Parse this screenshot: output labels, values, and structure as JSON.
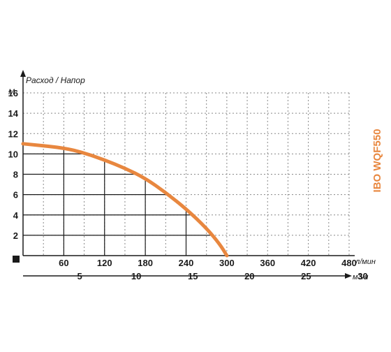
{
  "chart_data": {
    "type": "line",
    "title": "Расход / Напор",
    "model_label": "IBO WQF550",
    "y_unit": "М",
    "x_unit": "л/мин",
    "x2_unit": "м3/ч",
    "xlim": [
      0,
      480
    ],
    "ylim": [
      0,
      16
    ],
    "x_ticks": [
      "60",
      "120",
      "180",
      "240",
      "300",
      "360",
      "420",
      "480"
    ],
    "y_ticks": [
      "2",
      "4",
      "6",
      "8",
      "10",
      "12",
      "14",
      "16"
    ],
    "x2_ticks": [
      "5",
      "10",
      "15",
      "20",
      "25",
      "30"
    ],
    "grid": true,
    "series": [
      {
        "x": [
          0,
          60,
          90,
          120,
          150,
          180,
          210,
          240,
          270,
          290,
          300
        ],
        "y": [
          11,
          10.6,
          10.1,
          9.4,
          8.6,
          7.6,
          6.2,
          4.6,
          2.7,
          1.1,
          0
        ]
      }
    ],
    "colors": {
      "curve": "#e8873f",
      "model_label": "#e8873f",
      "axis": "#1a1a1a",
      "grid": "#888888"
    }
  }
}
